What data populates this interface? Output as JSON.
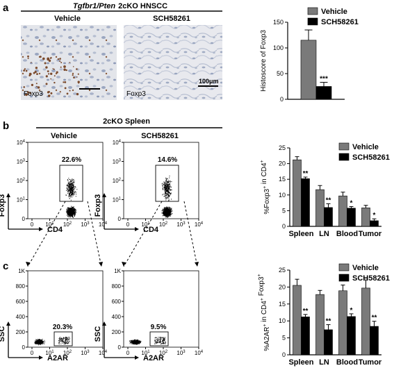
{
  "figure": {
    "panels": {
      "a": {
        "letter": "a",
        "title_gene": "Tgfbr1/Pten",
        "title_rest": "2cKO HNSCC",
        "vehicle_label": "Vehicle",
        "treatment_label": "SCH58261",
        "stain_label_left": "Foxp3",
        "stain_label_right": "Foxp3",
        "scale_bar_label": "100μm"
      },
      "b": {
        "letter": "b",
        "title": "2cKO Spleen",
        "vehicle_label": "Vehicle",
        "treatment_label": "SCH58261",
        "x_axis_label": "CD4",
        "y_axis_label": "Foxp3",
        "gate_vehicle": "22.6%",
        "gate_treatment": "14.6%",
        "log_ticks": [
          "0",
          "10",
          "10",
          "10",
          "10",
          "10"
        ],
        "log_exponents": [
          "",
          "",
          "1",
          "2",
          "3",
          "4"
        ]
      },
      "c": {
        "letter": "c",
        "x_axis_label": "A2AR",
        "y_axis_label": "SSC",
        "gate_vehicle": "20.3%",
        "gate_treatment": "9.5%",
        "y_ticks": [
          "1K",
          "800",
          "600",
          "400",
          "200",
          "0"
        ]
      }
    }
  },
  "colors": {
    "vehicle": "#7a7a7a",
    "treatment": "#000000"
  },
  "chart_data": [
    {
      "type": "bar",
      "panel": "a",
      "categories": [
        ""
      ],
      "series": [
        {
          "name": "Vehicle",
          "values": [
            115
          ],
          "errors": [
            20
          ]
        },
        {
          "name": "SCH58261",
          "values": [
            25
          ],
          "errors": [
            8
          ]
        }
      ],
      "significance": [
        "***"
      ],
      "ylabel": "Histoscore of Foxp3",
      "ylim": [
        0,
        150
      ],
      "yticks": [
        0,
        50,
        100,
        150
      ]
    },
    {
      "type": "bar",
      "panel": "b",
      "categories": [
        "Spleen",
        "LN",
        "Blood",
        "Tumor"
      ],
      "series": [
        {
          "name": "Vehicle",
          "values": [
            21.2,
            11.7,
            9.7,
            5.9
          ],
          "errors": [
            1.0,
            1.3,
            1.2,
            0.8
          ]
        },
        {
          "name": "SCH58261",
          "values": [
            15.2,
            6.0,
            5.8,
            1.8
          ],
          "errors": [
            0.5,
            1.2,
            0.5,
            0.6
          ]
        }
      ],
      "significance": [
        "**",
        "**",
        "*",
        "*"
      ],
      "ylabel_prefix": "%Foxp3",
      "ylabel_sup1": "+",
      "ylabel_mid": " in CD4",
      "ylabel_sup2": "+",
      "ylim": [
        0,
        25
      ],
      "yticks": [
        0,
        5,
        10,
        15,
        20,
        25
      ]
    },
    {
      "type": "bar",
      "panel": "c",
      "categories": [
        "Spleen",
        "LN",
        "Blood",
        "Tumor"
      ],
      "series": [
        {
          "name": "Vehicle",
          "values": [
            20.5,
            17.8,
            18.9,
            19.7
          ],
          "errors": [
            1.8,
            1.2,
            1.7,
            2.4
          ]
        },
        {
          "name": "SCH58261",
          "values": [
            11.2,
            7.4,
            11.3,
            8.4
          ],
          "errors": [
            0.7,
            1.5,
            0.8,
            1.5
          ]
        }
      ],
      "significance": [
        "**",
        "**",
        "*",
        "**"
      ],
      "ylabel_prefix": "%A2AR",
      "ylabel_sup1": "+",
      "ylabel_mid": " in CD4",
      "ylabel_sup2": "+",
      "ylabel_suffix": " Foxp3",
      "ylabel_sup3": "+",
      "ylim": [
        0,
        25
      ],
      "yticks": [
        0,
        5,
        10,
        15,
        20,
        25
      ]
    }
  ]
}
